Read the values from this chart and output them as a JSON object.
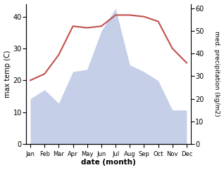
{
  "months": [
    "Jan",
    "Feb",
    "Mar",
    "Apr",
    "May",
    "Jun",
    "Jul",
    "Aug",
    "Sep",
    "Oct",
    "Nov",
    "Dec"
  ],
  "x": [
    0,
    1,
    2,
    3,
    4,
    5,
    6,
    7,
    8,
    9,
    10,
    11
  ],
  "temperature": [
    20,
    22,
    28,
    37,
    36.5,
    37,
    40.5,
    40.5,
    40,
    38.5,
    30,
    25.5
  ],
  "precipitation": [
    20,
    24,
    18,
    32,
    33,
    50,
    60,
    35,
    32,
    28,
    15,
    15
  ],
  "temp_color": "#c0504d",
  "precip_fill_color": "#c5cfe8",
  "ylabel_left": "max temp (C)",
  "ylabel_right": "med. precipitation (kg/m2)",
  "xlabel": "date (month)",
  "ylim_left": [
    0,
    44
  ],
  "ylim_right": [
    0,
    62
  ],
  "yticks_left": [
    0,
    10,
    20,
    30,
    40
  ],
  "yticks_right": [
    0,
    10,
    20,
    30,
    40,
    50,
    60
  ],
  "background_color": "#ffffff"
}
